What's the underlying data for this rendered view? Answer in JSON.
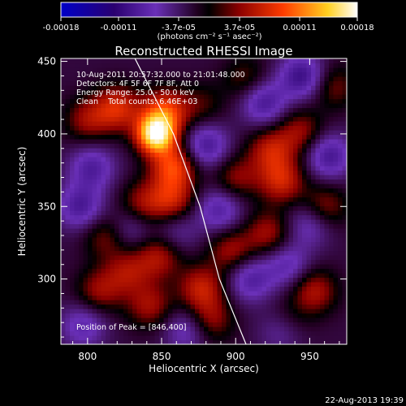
{
  "chart_data": {
    "type": "heatmap",
    "title": "Reconstructed RHESSI Image",
    "xlabel": "Heliocentric X (arcsec)",
    "ylabel": "Heliocentric Y (arcsec)",
    "xlim": [
      782,
      975
    ],
    "ylim": [
      255,
      452
    ],
    "x_ticks": [
      800,
      850,
      900,
      950
    ],
    "y_ticks": [
      300,
      350,
      400,
      450
    ],
    "colorbar": {
      "range": [
        -0.00018,
        0.00018
      ],
      "tick_values": [
        -0.00018,
        -0.00011,
        -3.7e-05,
        3.7e-05,
        0.00011,
        0.00018
      ],
      "tick_labels": [
        "-0.00018",
        "-0.00011",
        "-3.7e-05",
        "3.7e-05",
        "0.00011",
        "0.00018"
      ],
      "unit": "(photons cm⁻² s⁻¹ asec⁻²)",
      "colors": [
        "#0000c8",
        "#46005a",
        "#6a30b8",
        "#000000",
        "#8a0000",
        "#ff3c00",
        "#ffd020",
        "#ffffff"
      ]
    },
    "annotations": [
      "10-Aug-2011 20:57:32.000 to 21:01:48.000",
      "Detectors: 4F 5F 6F 7F 8F, Att 0",
      "Energy Range: 25.0 - 50.0 keV",
      "Clean    Total counts: 6.46E+03"
    ],
    "peak_label": "Position of Peak = [846,400]",
    "peak": [
      846,
      400
    ],
    "limb": [
      [
        832,
        452
      ],
      [
        858,
        400
      ],
      [
        876,
        350
      ],
      [
        889,
        300
      ],
      [
        907,
        255
      ]
    ],
    "blobs": [
      {
        "x": 846,
        "y": 400,
        "v": 1.0
      },
      {
        "x": 852,
        "y": 415,
        "v": 0.55
      },
      {
        "x": 820,
        "y": 418,
        "v": 0.45
      },
      {
        "x": 800,
        "y": 410,
        "v": 0.3
      },
      {
        "x": 858,
        "y": 378,
        "v": 0.55
      },
      {
        "x": 857,
        "y": 355,
        "v": 0.4
      },
      {
        "x": 837,
        "y": 352,
        "v": 0.3
      },
      {
        "x": 813,
        "y": 330,
        "v": 0.28
      },
      {
        "x": 848,
        "y": 316,
        "v": 0.35
      },
      {
        "x": 827,
        "y": 305,
        "v": 0.3
      },
      {
        "x": 808,
        "y": 292,
        "v": 0.3
      },
      {
        "x": 842,
        "y": 282,
        "v": 0.32
      },
      {
        "x": 877,
        "y": 294,
        "v": 0.4
      },
      {
        "x": 883,
        "y": 272,
        "v": 0.3
      },
      {
        "x": 897,
        "y": 320,
        "v": 0.32
      },
      {
        "x": 922,
        "y": 332,
        "v": 0.32
      },
      {
        "x": 900,
        "y": 370,
        "v": 0.28
      },
      {
        "x": 924,
        "y": 389,
        "v": 0.38
      },
      {
        "x": 931,
        "y": 368,
        "v": 0.42
      },
      {
        "x": 944,
        "y": 402,
        "v": 0.3
      },
      {
        "x": 960,
        "y": 350,
        "v": 0.3
      },
      {
        "x": 953,
        "y": 292,
        "v": 0.35
      },
      {
        "x": 935,
        "y": 270,
        "v": 0.28
      },
      {
        "x": 966,
        "y": 433,
        "v": 0.25
      },
      {
        "x": 907,
        "y": 438,
        "v": 0.22
      },
      {
        "x": 877,
        "y": 420,
        "v": 0.18
      },
      {
        "x": 795,
        "y": 350,
        "v": -0.38
      },
      {
        "x": 803,
        "y": 377,
        "v": -0.35
      },
      {
        "x": 797,
        "y": 268,
        "v": -0.3
      },
      {
        "x": 828,
        "y": 335,
        "v": -0.25
      },
      {
        "x": 880,
        "y": 392,
        "v": -0.4
      },
      {
        "x": 889,
        "y": 348,
        "v": -0.35
      },
      {
        "x": 919,
        "y": 422,
        "v": -0.4
      },
      {
        "x": 945,
        "y": 440,
        "v": -0.45
      },
      {
        "x": 963,
        "y": 385,
        "v": -0.4
      },
      {
        "x": 910,
        "y": 300,
        "v": -0.35
      },
      {
        "x": 935,
        "y": 310,
        "v": -0.3
      },
      {
        "x": 932,
        "y": 266,
        "v": -0.35
      },
      {
        "x": 867,
        "y": 265,
        "v": -0.28
      },
      {
        "x": 950,
        "y": 338,
        "v": -0.28
      },
      {
        "x": 860,
        "y": 333,
        "v": -0.2
      }
    ]
  },
  "footer": {
    "timestamp": "22-Aug-2013 19:39"
  }
}
